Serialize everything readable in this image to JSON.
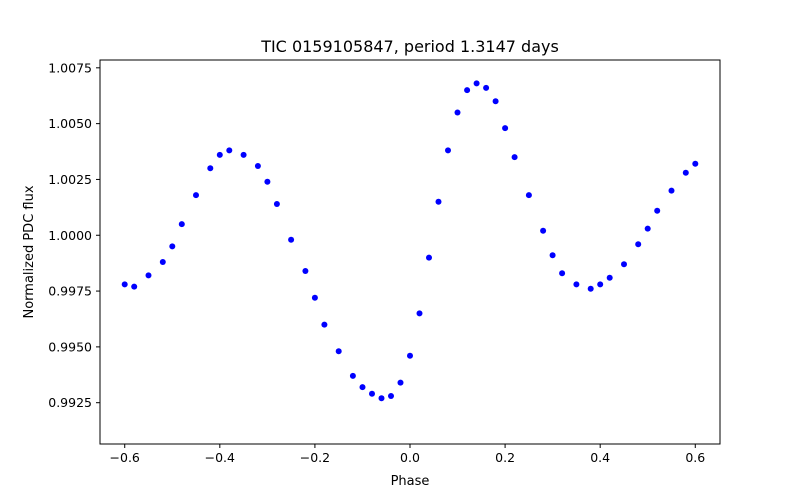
{
  "chart_data": {
    "type": "scatter",
    "title": "TIC 0159105847, period 1.3147 days",
    "xlabel": "Phase",
    "ylabel": "Normalized PDC flux",
    "xlim": [
      -0.652,
      0.652
    ],
    "ylim": [
      0.99065,
      1.00785
    ],
    "xticks": [
      -0.6,
      -0.4,
      -0.2,
      0.0,
      0.2,
      0.4,
      0.6
    ],
    "xtick_labels": [
      "−0.6",
      "−0.4",
      "−0.2",
      "0.0",
      "0.2",
      "0.4",
      "0.6"
    ],
    "yticks": [
      0.9925,
      0.995,
      0.9975,
      1.0,
      1.0025,
      1.005,
      1.0075
    ],
    "ytick_labels": [
      "0.9925",
      "0.9950",
      "0.9975",
      "1.0000",
      "1.0025",
      "1.0050",
      "1.0075"
    ],
    "grid": false,
    "marker_color": "#0000ff",
    "series": [
      {
        "x": [
          -0.6,
          -0.58,
          -0.55,
          -0.52,
          -0.5,
          -0.48,
          -0.45,
          -0.42,
          -0.4,
          -0.38,
          -0.35,
          -0.32,
          -0.3,
          -0.28,
          -0.25,
          -0.22,
          -0.2,
          -0.18,
          -0.15,
          -0.12,
          -0.1,
          -0.08,
          -0.06,
          -0.04,
          -0.02,
          0.0,
          0.02,
          0.04,
          0.06,
          0.08,
          0.1,
          0.12,
          0.14,
          0.16,
          0.18,
          0.2,
          0.22,
          0.25,
          0.28,
          0.3,
          0.32,
          0.35,
          0.38,
          0.4,
          0.42,
          0.45,
          0.48,
          0.5,
          0.52,
          0.55,
          0.58,
          0.6
        ],
        "y": [
          0.9978,
          0.9977,
          0.9982,
          0.9988,
          0.9995,
          1.0005,
          1.0018,
          1.003,
          1.0036,
          1.0038,
          1.0036,
          1.0031,
          1.0024,
          1.0014,
          0.9998,
          0.9984,
          0.9972,
          0.996,
          0.9948,
          0.9937,
          0.9932,
          0.9929,
          0.9927,
          0.9928,
          0.9934,
          0.9946,
          0.9965,
          0.999,
          1.0015,
          1.0038,
          1.0055,
          1.0065,
          1.0068,
          1.0066,
          1.006,
          1.0048,
          1.0035,
          1.0018,
          1.0002,
          0.9991,
          0.9983,
          0.9978,
          0.9976,
          0.9978,
          0.9981,
          0.9987,
          0.9996,
          1.0003,
          1.0011,
          1.002,
          1.0028,
          1.0032
        ]
      }
    ]
  }
}
